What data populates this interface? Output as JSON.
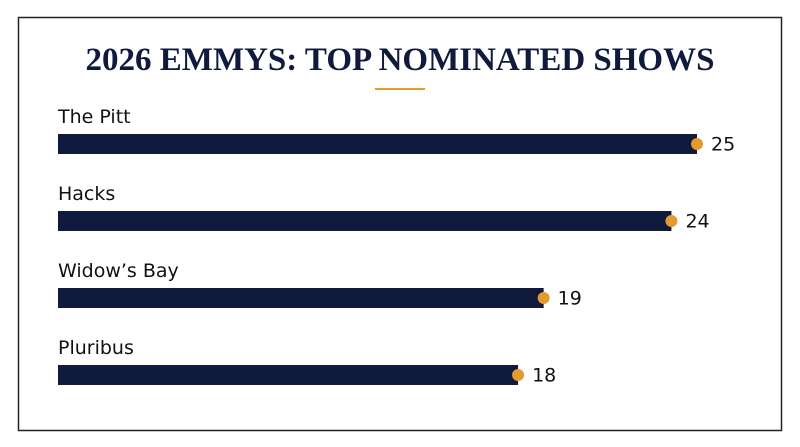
{
  "chart_data": {
    "type": "bar",
    "orientation": "horizontal",
    "title": "2026 EMMYS: TOP NOMINATED SHOWS",
    "categories": [
      "The Pitt",
      "Hacks",
      "Widow’s Bay",
      "Pluribus"
    ],
    "values": [
      25,
      24,
      19,
      18
    ],
    "color": "#101a3d",
    "marker_color": "#e39a2e"
  }
}
